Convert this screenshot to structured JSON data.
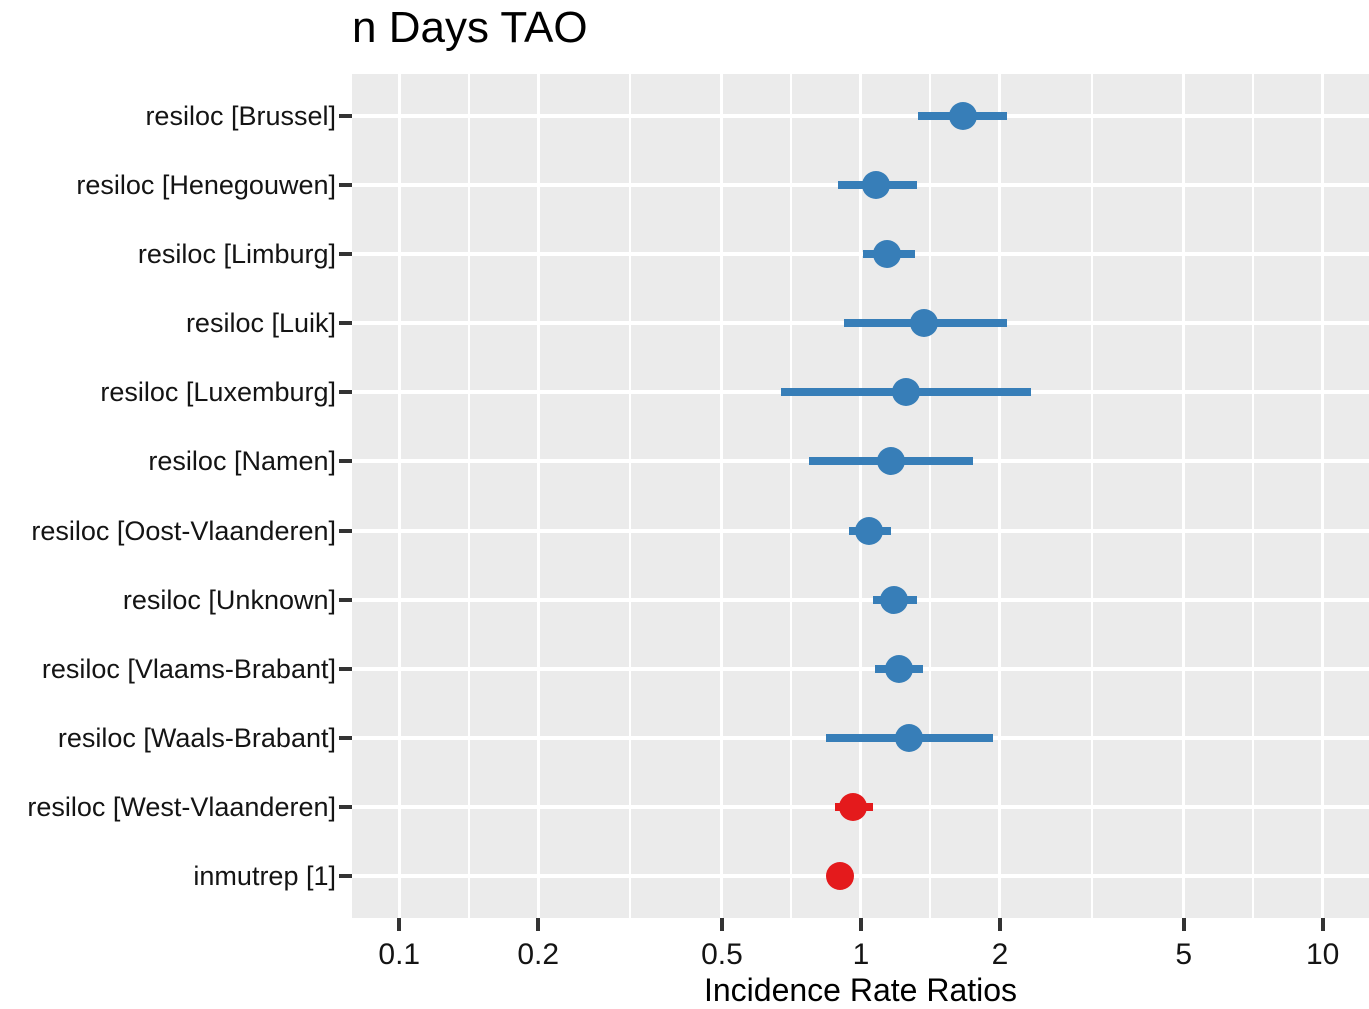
{
  "title": "n Days TAO",
  "colors": {
    "positive": "#377EB8",
    "negative": "#E41A1C",
    "panel_background": "#EBEBEB",
    "gridline": "#FFFFFF",
    "tick_mark": "#333333",
    "text": "#141414"
  },
  "chart_data": {
    "type": "scatter",
    "subtype": "forest-dot-whisker",
    "title": "n Days TAO",
    "xlabel": "Incidence Rate Ratios",
    "ylabel": "",
    "xscale": "log10",
    "xlim": [
      0.079,
      12.6
    ],
    "x_ticks": [
      0.1,
      0.2,
      0.5,
      1,
      2,
      5,
      10
    ],
    "x_tick_labels": [
      "0.1",
      "0.2",
      "0.5",
      "1",
      "2",
      "5",
      "10"
    ],
    "x_minor_gridlines": [
      0.1414,
      0.3162,
      0.7071,
      1.4142,
      3.1623,
      7.0711
    ],
    "grid": true,
    "legend": false,
    "rows": [
      {
        "term": "resiloc [Brussel]",
        "estimate": 1.66,
        "ci_low": 1.33,
        "ci_high": 2.07,
        "direction": "positive"
      },
      {
        "term": "resiloc [Henegouwen]",
        "estimate": 1.08,
        "ci_low": 0.89,
        "ci_high": 1.32,
        "direction": "positive"
      },
      {
        "term": "resiloc [Limburg]",
        "estimate": 1.14,
        "ci_low": 1.01,
        "ci_high": 1.31,
        "direction": "positive"
      },
      {
        "term": "resiloc [Luik]",
        "estimate": 1.37,
        "ci_low": 0.92,
        "ci_high": 2.07,
        "direction": "positive"
      },
      {
        "term": "resiloc [Luxemburg]",
        "estimate": 1.25,
        "ci_low": 0.67,
        "ci_high": 2.34,
        "direction": "positive"
      },
      {
        "term": "resiloc [Namen]",
        "estimate": 1.16,
        "ci_low": 0.77,
        "ci_high": 1.75,
        "direction": "positive"
      },
      {
        "term": "resiloc [Oost-Vlaanderen]",
        "estimate": 1.04,
        "ci_low": 0.94,
        "ci_high": 1.16,
        "direction": "positive"
      },
      {
        "term": "resiloc [Unknown]",
        "estimate": 1.18,
        "ci_low": 1.06,
        "ci_high": 1.32,
        "direction": "positive"
      },
      {
        "term": "resiloc [Vlaams-Brabant]",
        "estimate": 1.21,
        "ci_low": 1.07,
        "ci_high": 1.36,
        "direction": "positive"
      },
      {
        "term": "resiloc [Waals-Brabant]",
        "estimate": 1.27,
        "ci_low": 0.84,
        "ci_high": 1.93,
        "direction": "positive"
      },
      {
        "term": "resiloc [West-Vlaanderen]",
        "estimate": 0.96,
        "ci_low": 0.88,
        "ci_high": 1.06,
        "direction": "negative"
      },
      {
        "term": "inmutrep [1]",
        "estimate": 0.9,
        "ci_low": 0.87,
        "ci_high": 0.93,
        "direction": "negative"
      }
    ]
  }
}
